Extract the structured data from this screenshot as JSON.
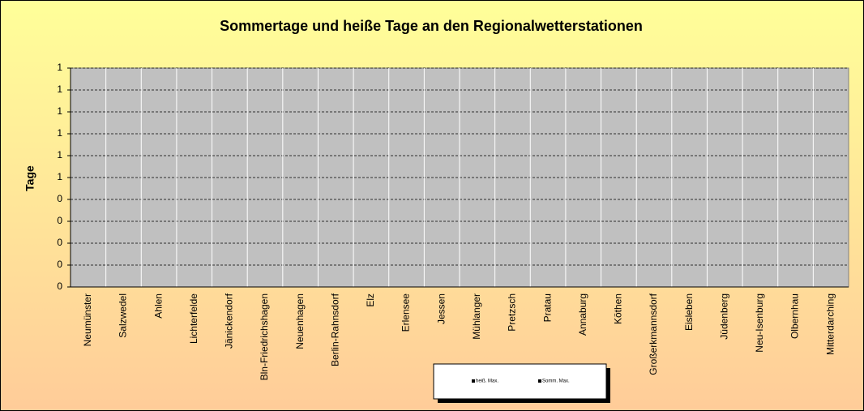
{
  "chart_data": {
    "type": "bar",
    "title": "Sommertage und heiße Tage an den Regionalwetterstationen",
    "y_label": "Tage",
    "categories": [
      "Neumünster",
      "Salzwedel",
      "Ahlen",
      "Lichterfelde",
      "Jänickendorf",
      "Bln-Friedrichshagen",
      "Neuenhagen",
      "Berlin-Rahnsdorf",
      "Elz",
      "Erlensee",
      "Jessen",
      "Mühlanger",
      "Pretzsch",
      "Pratau",
      "Annaburg",
      "Köthen",
      "Großerkmannsdorf",
      "Eisleben",
      "Jüdenberg",
      "Neu-Isenburg",
      "Olbernhau",
      "Mitterdarching"
    ],
    "series": [
      {
        "name": "heiß. Max.",
        "color": "#000000",
        "values": [
          null,
          null,
          null,
          null,
          null,
          null,
          null,
          null,
          null,
          null,
          null,
          null,
          null,
          null,
          null,
          null,
          null,
          null,
          null,
          null,
          null,
          null
        ]
      },
      {
        "name": "Somm. Max.",
        "color": "#000000",
        "values": [
          null,
          null,
          null,
          null,
          null,
          null,
          null,
          null,
          null,
          null,
          null,
          null,
          null,
          null,
          null,
          null,
          null,
          null,
          null,
          null,
          null,
          null
        ]
      }
    ],
    "ylim": [
      0,
      1
    ],
    "yticks": [
      0,
      {
        "value": 0.1,
        "label": "0"
      },
      {
        "value": 0.2,
        "label": "0"
      },
      {
        "value": 0.3,
        "label": "0"
      },
      {
        "value": 0.4,
        "label": "0"
      },
      {
        "value": 0.5,
        "label": "1"
      },
      {
        "value": 0.6,
        "label": "1"
      },
      {
        "value": 0.7,
        "label": "1"
      },
      {
        "value": 0.8,
        "label": "1"
      },
      {
        "value": 0.9,
        "label": "1"
      },
      1
    ],
    "grid": true
  }
}
